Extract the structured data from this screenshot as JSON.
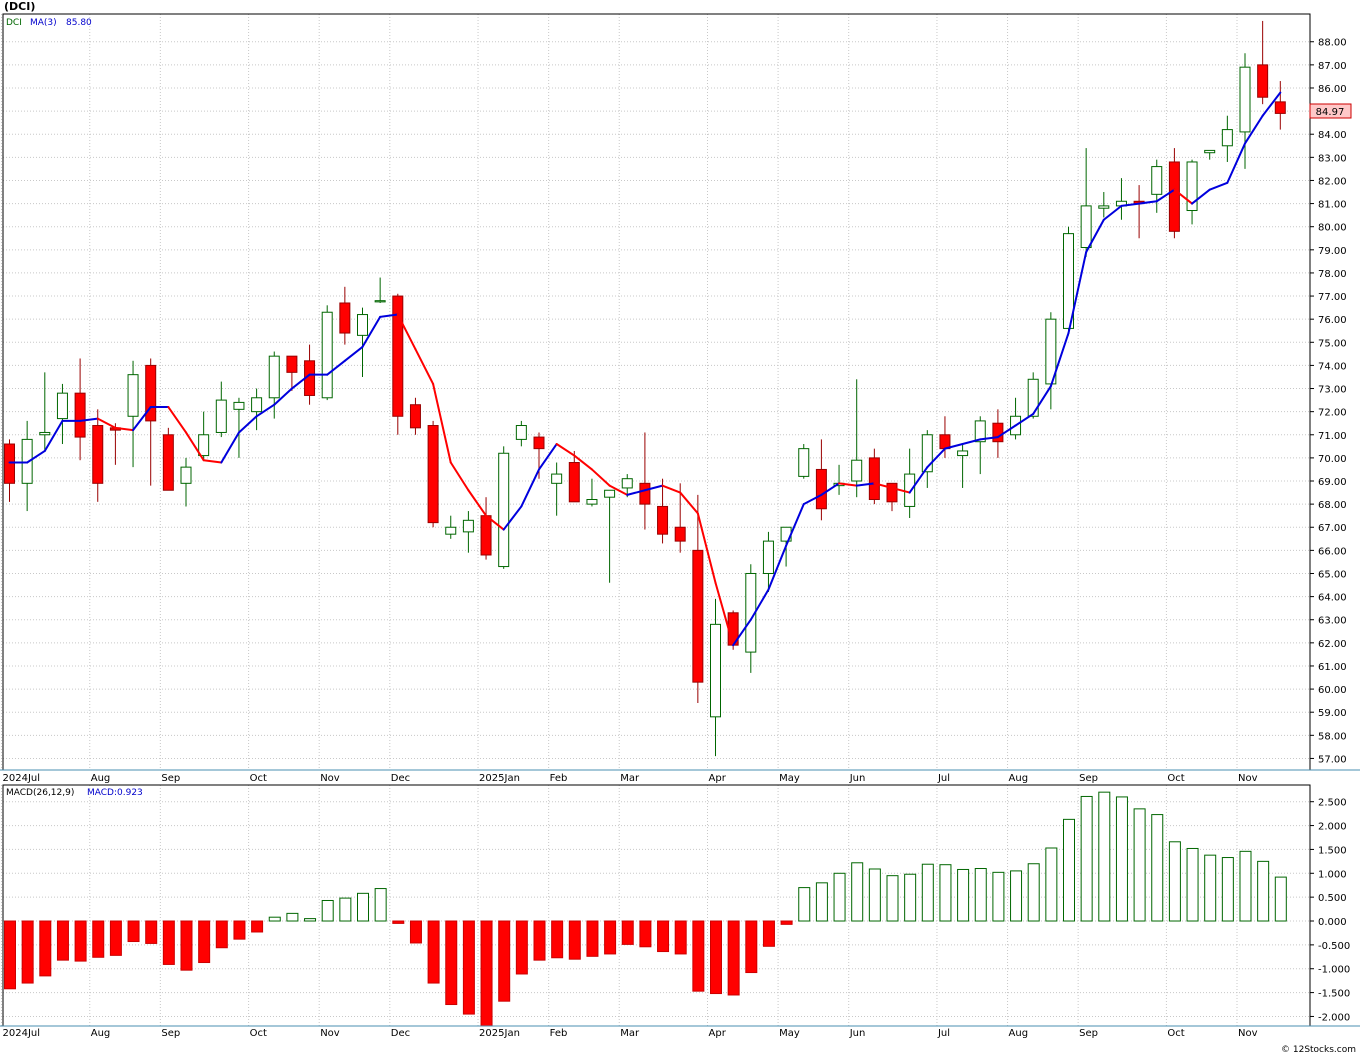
{
  "header": {
    "title": "(DCI)",
    "legend_symbol": "DCI",
    "ma_label": "MA(3)",
    "ma_value": "85.80",
    "last_price": "84.97"
  },
  "macd_panel": {
    "label": "MACD(26,12,9)",
    "value_label": "MACD:0.923"
  },
  "footer": {
    "credit": "© 12Stocks.com"
  },
  "colors": {
    "up_body": "#ffffff",
    "up_border": "#006600",
    "down_body": "#ff0000",
    "down_border": "#990000",
    "ma_up": "#0000dd",
    "ma_down": "#ff0000",
    "macd_pos_border": "#006600",
    "macd_neg_fill": "#ff0000",
    "grid": "#c8c8c8",
    "last_price_box": "#ffc8c8"
  },
  "chart_data": [
    {
      "type": "candlestick",
      "title": "(DCI)",
      "interval": "weekly",
      "ylim": [
        56.5,
        89.2
      ],
      "grid": true,
      "y_ticks": [
        57,
        58,
        59,
        60,
        61,
        62,
        63,
        64,
        65,
        66,
        67,
        68,
        69,
        70,
        71,
        72,
        73,
        74,
        75,
        76,
        77,
        78,
        79,
        80,
        81,
        82,
        83,
        84,
        85,
        86,
        87,
        88
      ],
      "y_tick_labels": [
        "57.00",
        "58.00",
        "59.00",
        "60.00",
        "61.00",
        "62.00",
        "63.00",
        "64.00",
        "65.00",
        "66.00",
        "67.00",
        "68.00",
        "69.00",
        "70.00",
        "71.00",
        "72.00",
        "73.00",
        "74.00",
        "75.00",
        "76.00",
        "77.00",
        "78.00",
        "79.00",
        "80.00",
        "81.00",
        "82.00",
        "83.00",
        "84.00",
        "85.00",
        "86.00",
        "87.00",
        "88.00"
      ],
      "x_labels": [
        {
          "label": "2024Jul",
          "bar": 0
        },
        {
          "label": "Aug",
          "bar": 5
        },
        {
          "label": "Sep",
          "bar": 9
        },
        {
          "label": "Oct",
          "bar": 14
        },
        {
          "label": "Nov",
          "bar": 18
        },
        {
          "label": "Dec",
          "bar": 22
        },
        {
          "label": "2025Jan",
          "bar": 27
        },
        {
          "label": "Feb",
          "bar": 31
        },
        {
          "label": "Mar",
          "bar": 35
        },
        {
          "label": "Apr",
          "bar": 40
        },
        {
          "label": "May",
          "bar": 44
        },
        {
          "label": "Jun",
          "bar": 48
        },
        {
          "label": "Jul",
          "bar": 53
        },
        {
          "label": "Aug",
          "bar": 57
        },
        {
          "label": "Sep",
          "bar": 61
        },
        {
          "label": "Oct",
          "bar": 66
        },
        {
          "label": "Nov",
          "bar": 70
        }
      ],
      "series": [
        {
          "name": "DCI",
          "ohlc": [
            [
              70.6,
              70.8,
              68.1,
              68.9
            ],
            [
              68.9,
              71.6,
              67.7,
              70.8
            ],
            [
              71.0,
              73.7,
              70.3,
              71.1
            ],
            [
              71.7,
              73.2,
              70.6,
              72.8
            ],
            [
              72.8,
              74.3,
              69.9,
              70.9
            ],
            [
              71.4,
              72.1,
              68.1,
              68.9
            ],
            [
              71.3,
              71.5,
              69.7,
              71.2
            ],
            [
              71.8,
              74.2,
              69.6,
              73.6
            ],
            [
              74.0,
              74.3,
              68.8,
              71.6
            ],
            [
              71.0,
              71.3,
              68.6,
              68.6
            ],
            [
              68.9,
              70.0,
              67.9,
              69.6
            ],
            [
              70.1,
              72.0,
              69.9,
              71.0
            ],
            [
              71.1,
              73.3,
              70.9,
              72.5
            ],
            [
              72.1,
              72.6,
              70.0,
              72.4
            ],
            [
              72.0,
              73.0,
              71.2,
              72.6
            ],
            [
              72.6,
              74.6,
              71.7,
              74.4
            ],
            [
              74.4,
              74.4,
              72.9,
              73.7
            ],
            [
              74.2,
              74.9,
              72.3,
              72.7
            ],
            [
              72.6,
              76.6,
              72.5,
              76.3
            ],
            [
              76.7,
              77.4,
              74.9,
              75.4
            ],
            [
              75.3,
              76.5,
              73.5,
              76.2
            ],
            [
              76.8,
              77.8,
              76.7,
              76.8
            ],
            [
              77.0,
              77.1,
              71.0,
              71.8
            ],
            [
              72.3,
              72.6,
              71.0,
              71.3
            ],
            [
              71.4,
              71.6,
              67.0,
              67.2
            ],
            [
              66.7,
              67.5,
              66.5,
              67.0
            ],
            [
              66.8,
              67.7,
              65.9,
              67.3
            ],
            [
              67.5,
              68.3,
              65.6,
              65.8
            ],
            [
              65.3,
              70.5,
              65.2,
              70.2
            ],
            [
              70.8,
              71.6,
              70.5,
              71.4
            ],
            [
              70.9,
              71.1,
              69.1,
              70.4
            ],
            [
              68.9,
              69.8,
              67.5,
              69.3
            ],
            [
              69.8,
              70.3,
              68.1,
              68.1
            ],
            [
              68.0,
              69.1,
              67.9,
              68.2
            ],
            [
              68.3,
              68.5,
              64.6,
              68.6
            ],
            [
              68.7,
              69.3,
              68.3,
              69.1
            ],
            [
              68.9,
              71.1,
              66.9,
              68.0
            ],
            [
              67.9,
              69.1,
              66.3,
              66.7
            ],
            [
              67.0,
              68.9,
              65.9,
              66.4
            ],
            [
              66.0,
              68.4,
              59.4,
              60.3
            ],
            [
              58.8,
              63.9,
              57.1,
              62.8
            ],
            [
              63.3,
              63.4,
              61.7,
              61.9
            ],
            [
              61.6,
              65.4,
              60.7,
              65.0
            ],
            [
              65.0,
              66.8,
              64.2,
              66.4
            ],
            [
              66.4,
              66.8,
              65.3,
              67.0
            ],
            [
              69.2,
              70.6,
              69.1,
              70.4
            ],
            [
              69.5,
              70.8,
              67.3,
              67.8
            ],
            [
              68.8,
              69.7,
              68.4,
              68.9
            ],
            [
              69.0,
              73.4,
              68.3,
              69.9
            ],
            [
              70.0,
              70.4,
              68.0,
              68.2
            ],
            [
              68.9,
              68.9,
              67.7,
              68.1
            ],
            [
              67.9,
              70.4,
              67.4,
              69.3
            ],
            [
              69.4,
              71.2,
              68.7,
              71.0
            ],
            [
              71.0,
              71.8,
              70.0,
              70.4
            ],
            [
              70.1,
              70.6,
              68.7,
              70.3
            ],
            [
              70.7,
              71.8,
              69.3,
              71.6
            ],
            [
              71.5,
              72.1,
              70.0,
              70.7
            ],
            [
              71.0,
              72.6,
              70.8,
              71.8
            ],
            [
              71.8,
              73.7,
              71.7,
              73.4
            ],
            [
              73.2,
              76.3,
              72.1,
              76.0
            ],
            [
              75.6,
              80.0,
              75.3,
              79.7
            ],
            [
              79.1,
              83.4,
              78.7,
              80.9
            ],
            [
              80.8,
              81.5,
              80.4,
              80.9
            ],
            [
              80.9,
              82.1,
              80.3,
              81.1
            ],
            [
              81.1,
              81.8,
              79.5,
              81.0
            ],
            [
              81.4,
              82.9,
              80.6,
              82.6
            ],
            [
              82.8,
              83.4,
              79.5,
              79.8
            ],
            [
              80.7,
              82.9,
              80.1,
              82.8
            ],
            [
              83.2,
              83.3,
              82.9,
              83.3
            ],
            [
              83.5,
              84.8,
              82.8,
              84.2
            ],
            [
              84.1,
              87.5,
              82.5,
              86.9
            ],
            [
              87.0,
              88.9,
              85.3,
              85.6
            ],
            [
              85.4,
              86.3,
              84.2,
              84.9
            ]
          ]
        },
        {
          "name": "MA(3)",
          "values": [
            69.8,
            69.8,
            70.3,
            71.6,
            71.6,
            71.7,
            71.3,
            71.2,
            72.2,
            72.2,
            71.1,
            69.9,
            69.8,
            71.1,
            71.8,
            72.3,
            73.0,
            73.6,
            73.6,
            74.2,
            74.8,
            76.1,
            76.2,
            74.7,
            73.2,
            69.8,
            68.6,
            67.5,
            66.9,
            67.9,
            69.5,
            70.6,
            70.1,
            69.5,
            68.8,
            68.4,
            68.6,
            68.8,
            68.5,
            67.6,
            64.6,
            61.9,
            63.0,
            64.3,
            66.2,
            68.0,
            68.4,
            68.9,
            68.8,
            68.9,
            68.7,
            68.5,
            69.6,
            70.4,
            70.6,
            70.8,
            70.9,
            71.4,
            71.9,
            73.1,
            75.4,
            78.9,
            80.3,
            80.9,
            81.0,
            81.1,
            81.6,
            81.0,
            81.6,
            81.9,
            83.6,
            84.8,
            85.8
          ]
        }
      ]
    },
    {
      "type": "bar",
      "title": "MACD(26,12,9)",
      "ylim": [
        -2.2,
        2.85
      ],
      "grid": true,
      "y_ticks": [
        -2,
        -1.5,
        -1,
        -0.5,
        0,
        0.5,
        1,
        1.5,
        2,
        2.5
      ],
      "y_tick_labels": [
        "-2.000",
        "-1.500",
        "-1.000",
        "-0.500",
        "0.000",
        "0.500",
        "1.000",
        "1.500",
        "2.000",
        "2.500"
      ],
      "x_labels": [
        {
          "label": "2024Jul",
          "bar": 0
        },
        {
          "label": "Aug",
          "bar": 5
        },
        {
          "label": "Sep",
          "bar": 9
        },
        {
          "label": "Oct",
          "bar": 14
        },
        {
          "label": "Nov",
          "bar": 18
        },
        {
          "label": "Dec",
          "bar": 22
        },
        {
          "label": "2025Jan",
          "bar": 27
        },
        {
          "label": "Feb",
          "bar": 31
        },
        {
          "label": "Mar",
          "bar": 35
        },
        {
          "label": "Apr",
          "bar": 40
        },
        {
          "label": "May",
          "bar": 44
        },
        {
          "label": "Jun",
          "bar": 48
        },
        {
          "label": "Jul",
          "bar": 53
        },
        {
          "label": "Aug",
          "bar": 57
        },
        {
          "label": "Sep",
          "bar": 61
        },
        {
          "label": "Oct",
          "bar": 66
        },
        {
          "label": "Nov",
          "bar": 70
        }
      ],
      "series": [
        {
          "name": "MACD",
          "values": [
            -1.42,
            -1.3,
            -1.15,
            -0.82,
            -0.84,
            -0.76,
            -0.72,
            -0.43,
            -0.47,
            -0.91,
            -1.03,
            -0.87,
            -0.56,
            -0.38,
            -0.23,
            0.08,
            0.16,
            0.05,
            0.43,
            0.48,
            0.58,
            0.68,
            -0.05,
            -0.46,
            -1.3,
            -1.75,
            -1.95,
            -2.2,
            -1.68,
            -1.11,
            -0.82,
            -0.77,
            -0.8,
            -0.74,
            -0.69,
            -0.49,
            -0.54,
            -0.64,
            -0.69,
            -1.47,
            -1.52,
            -1.55,
            -1.08,
            -0.53,
            -0.07,
            0.7,
            0.8,
            1.0,
            1.22,
            1.09,
            0.95,
            0.98,
            1.19,
            1.18,
            1.08,
            1.1,
            1.02,
            1.05,
            1.2,
            1.53,
            2.13,
            2.61,
            2.7,
            2.6,
            2.35,
            2.23,
            1.66,
            1.52,
            1.38,
            1.33,
            1.46,
            1.25,
            0.92
          ]
        }
      ]
    }
  ]
}
